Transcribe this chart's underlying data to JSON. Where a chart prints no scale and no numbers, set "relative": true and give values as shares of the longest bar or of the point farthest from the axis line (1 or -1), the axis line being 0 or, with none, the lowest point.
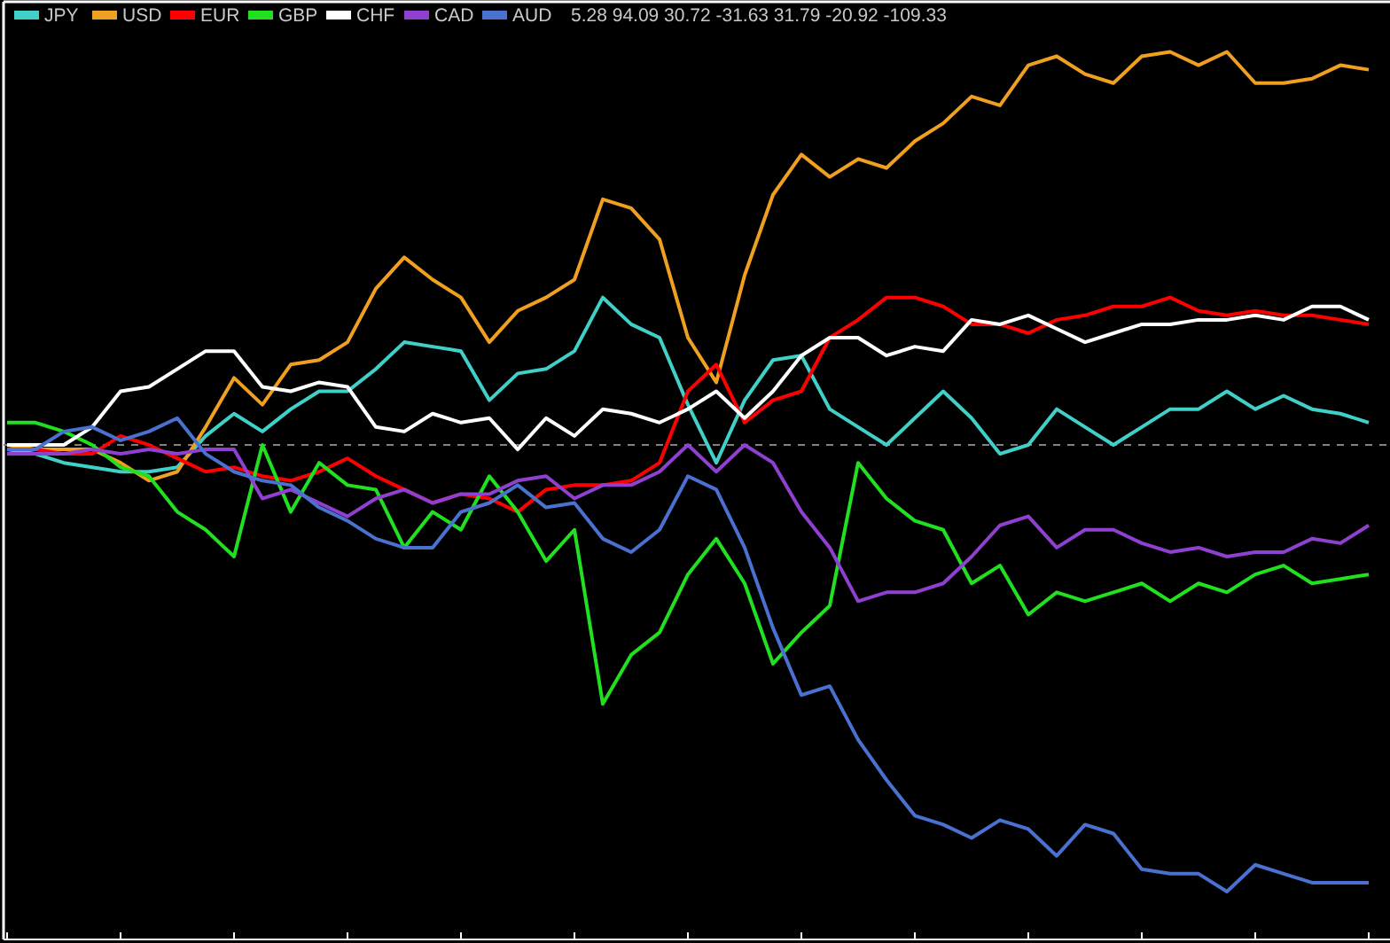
{
  "chart_data": {
    "type": "line",
    "relative": true,
    "legend": "top left",
    "line_style": "solid",
    "categories": [
      null,
      null,
      null,
      null,
      null,
      null,
      null,
      null,
      null,
      null,
      null,
      null,
      null,
      null,
      null,
      null,
      null,
      null,
      null,
      null,
      null,
      null,
      null,
      null,
      null,
      null,
      null,
      null,
      null,
      null,
      null,
      null,
      null,
      null,
      null,
      null,
      null,
      null,
      null,
      null,
      null,
      null,
      null,
      null,
      null,
      null,
      null,
      null,
      null
    ],
    "annotations": [
      "5.28 94.09 30.72 -31.63 31.79 -20.92 -109.33"
    ],
    "ref_lines": [
      {
        "axis": "y",
        "value": 0,
        "color": "#808080",
        "line_style": "dashed"
      }
    ],
    "series": [
      {
        "name": "JPY",
        "color": "#40d0c8",
        "values": [
          -0.01,
          -0.02,
          -0.04,
          -0.05,
          -0.06,
          -0.06,
          -0.05,
          0.02,
          0.07,
          0.03,
          0.08,
          0.12,
          0.12,
          0.17,
          0.23,
          0.22,
          0.21,
          0.1,
          0.16,
          0.17,
          0.21,
          0.33,
          0.27,
          0.24,
          0.09,
          -0.04,
          0.1,
          0.19,
          0.2,
          0.08,
          0.04,
          0.0,
          0.06,
          0.12,
          0.06,
          -0.02,
          0.0,
          0.08,
          0.04,
          0.0,
          0.04,
          0.08,
          0.08,
          0.12,
          0.08,
          0.11,
          0.08,
          0.07,
          0.05
        ]
      },
      {
        "name": "USD",
        "color": "#f0a020",
        "values": [
          0.0,
          -0.01,
          -0.01,
          -0.01,
          -0.04,
          -0.08,
          -0.06,
          0.04,
          0.15,
          0.09,
          0.18,
          0.19,
          0.23,
          0.35,
          0.42,
          0.37,
          0.33,
          0.23,
          0.3,
          0.33,
          0.37,
          0.55,
          0.53,
          0.46,
          0.24,
          0.14,
          0.38,
          0.56,
          0.65,
          0.6,
          0.64,
          0.62,
          0.68,
          0.72,
          0.78,
          0.76,
          0.85,
          0.87,
          0.83,
          0.81,
          0.87,
          0.88,
          0.85,
          0.88,
          0.81,
          0.81,
          0.82,
          0.85,
          0.84
        ]
      },
      {
        "name": "EUR",
        "color": "#ff0000",
        "values": [
          -0.01,
          -0.01,
          -0.02,
          -0.02,
          0.02,
          0.0,
          -0.03,
          -0.06,
          -0.05,
          -0.07,
          -0.08,
          -0.06,
          -0.03,
          -0.07,
          -0.1,
          -0.13,
          -0.11,
          -0.12,
          -0.15,
          -0.1,
          -0.09,
          -0.09,
          -0.08,
          -0.04,
          0.12,
          0.18,
          0.05,
          0.1,
          0.12,
          0.24,
          0.28,
          0.33,
          0.33,
          0.31,
          0.27,
          0.27,
          0.25,
          0.28,
          0.29,
          0.31,
          0.31,
          0.33,
          0.3,
          0.29,
          0.3,
          0.29,
          0.29,
          0.28,
          0.27
        ]
      },
      {
        "name": "GBP",
        "color": "#20e020",
        "values": [
          0.05,
          0.05,
          0.03,
          0.0,
          -0.05,
          -0.07,
          -0.15,
          -0.19,
          -0.25,
          0.0,
          -0.15,
          -0.04,
          -0.09,
          -0.1,
          -0.23,
          -0.15,
          -0.19,
          -0.07,
          -0.15,
          -0.26,
          -0.19,
          -0.58,
          -0.47,
          -0.42,
          -0.29,
          -0.21,
          -0.31,
          -0.49,
          -0.42,
          -0.36,
          -0.04,
          -0.12,
          -0.17,
          -0.19,
          -0.31,
          -0.27,
          -0.38,
          -0.33,
          -0.35,
          -0.33,
          -0.31,
          -0.35,
          -0.31,
          -0.33,
          -0.29,
          -0.27,
          -0.31,
          -0.3,
          -0.29
        ]
      },
      {
        "name": "CHF",
        "color": "#ffffff",
        "values": [
          0.0,
          0.0,
          0.0,
          0.04,
          0.12,
          0.13,
          0.17,
          0.21,
          0.21,
          0.13,
          0.12,
          0.14,
          0.13,
          0.04,
          0.03,
          0.07,
          0.05,
          0.06,
          -0.01,
          0.06,
          0.02,
          0.08,
          0.07,
          0.05,
          0.08,
          0.12,
          0.06,
          0.12,
          0.2,
          0.24,
          0.24,
          0.2,
          0.22,
          0.21,
          0.28,
          0.27,
          0.29,
          0.26,
          0.23,
          0.25,
          0.27,
          0.27,
          0.28,
          0.28,
          0.29,
          0.28,
          0.31,
          0.31,
          0.28
        ]
      },
      {
        "name": "CAD",
        "color": "#9040d0",
        "values": [
          -0.02,
          -0.02,
          -0.02,
          -0.01,
          -0.02,
          -0.01,
          -0.02,
          -0.01,
          -0.01,
          -0.12,
          -0.1,
          -0.13,
          -0.16,
          -0.12,
          -0.1,
          -0.13,
          -0.11,
          -0.11,
          -0.08,
          -0.07,
          -0.12,
          -0.09,
          -0.09,
          -0.06,
          0.0,
          -0.06,
          0.0,
          -0.04,
          -0.15,
          -0.23,
          -0.35,
          -0.33,
          -0.33,
          -0.31,
          -0.25,
          -0.18,
          -0.16,
          -0.23,
          -0.19,
          -0.19,
          -0.22,
          -0.24,
          -0.23,
          -0.25,
          -0.24,
          -0.24,
          -0.21,
          -0.22,
          -0.18
        ]
      },
      {
        "name": "AUD",
        "color": "#4a70d0",
        "values": [
          -0.01,
          -0.01,
          0.03,
          0.04,
          0.01,
          0.03,
          0.06,
          -0.02,
          -0.06,
          -0.08,
          -0.09,
          -0.14,
          -0.17,
          -0.21,
          -0.23,
          -0.23,
          -0.15,
          -0.13,
          -0.09,
          -0.14,
          -0.13,
          -0.21,
          -0.24,
          -0.19,
          -0.07,
          -0.1,
          -0.23,
          -0.41,
          -0.56,
          -0.54,
          -0.66,
          -0.75,
          -0.83,
          -0.85,
          -0.88,
          -0.84,
          -0.86,
          -0.92,
          -0.85,
          -0.87,
          -0.95,
          -0.96,
          -0.96,
          -1,
          -0.94,
          -0.96,
          -0.98,
          -0.98,
          -0.98
        ]
      }
    ]
  }
}
